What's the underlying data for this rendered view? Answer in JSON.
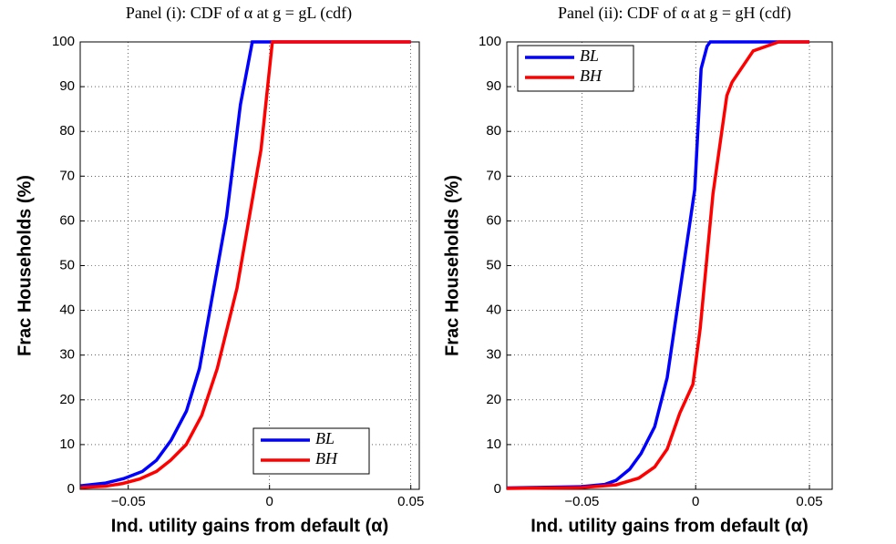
{
  "chart_data": [
    {
      "type": "line",
      "title": "Panel (i): CDF of α at g = gL (cdf)",
      "x_label": "Ind. utility gains from default (α)",
      "y_label": "Frac Households (%)",
      "xlim": [
        -0.067,
        0.053
      ],
      "ylim": [
        0,
        100
      ],
      "xticks": [
        {
          "value": -0.05,
          "label": "−0.05"
        },
        0,
        0.05
      ],
      "yticks": [
        0,
        10,
        20,
        30,
        40,
        50,
        60,
        70,
        80,
        90,
        100
      ],
      "grid": true,
      "legend": "lower right",
      "series": [
        {
          "name": "BL",
          "color": "#0000ff",
          "x": [
            -0.0668,
            -0.058,
            -0.0516,
            -0.045,
            -0.04,
            -0.0348,
            -0.0294,
            -0.0248,
            -0.02,
            -0.0152,
            -0.0103,
            -0.0061,
            0.05
          ],
          "values": [
            0.8,
            1.4,
            2.4,
            4,
            6.5,
            11,
            17.5,
            27,
            44,
            61,
            86,
            100,
            100
          ]
        },
        {
          "name": "BH",
          "color": "#ff0000",
          "x": [
            -0.0668,
            -0.058,
            -0.052,
            -0.046,
            -0.04,
            -0.035,
            -0.0295,
            -0.024,
            -0.0185,
            -0.0115,
            -0.003,
            0.001,
            0.05
          ],
          "values": [
            0.4,
            0.7,
            1.3,
            2.3,
            4,
            6.5,
            10,
            16.5,
            27,
            45,
            76,
            100,
            100
          ]
        }
      ]
    },
    {
      "type": "line",
      "title": "Panel (ii): CDF of α at g = gH (cdf)",
      "x_label": "Ind. utility gains from default (α)",
      "y_label": "Frac Households (%)",
      "xlim": [
        -0.083,
        0.06
      ],
      "ylim": [
        0,
        100
      ],
      "xticks": [
        {
          "value": -0.05,
          "label": "−0.05"
        },
        0,
        0.05
      ],
      "yticks": [
        0,
        10,
        20,
        30,
        40,
        50,
        60,
        70,
        80,
        90,
        100
      ],
      "grid": true,
      "legend": "upper left",
      "series": [
        {
          "name": "BL",
          "color": "#0000ff",
          "x": [
            -0.083,
            -0.05,
            -0.04,
            -0.035,
            -0.029,
            -0.024,
            -0.018,
            -0.0125,
            -0.0004,
            0.0024,
            0.005,
            0.0064,
            0.05
          ],
          "values": [
            0.3,
            0.6,
            1.1,
            2,
            4.5,
            8,
            14,
            25,
            67,
            94,
            99,
            100,
            100
          ]
        },
        {
          "name": "BH",
          "color": "#ff0000",
          "x": [
            -0.083,
            -0.05,
            -0.035,
            -0.025,
            -0.018,
            -0.0125,
            -0.007,
            -0.0012,
            0.002,
            0.0076,
            0.0137,
            0.016,
            0.0253,
            0.0365,
            0.05
          ],
          "values": [
            0.2,
            0.4,
            1,
            2.5,
            5,
            9,
            17,
            23.5,
            36,
            66,
            88,
            91,
            98,
            100,
            100
          ]
        }
      ]
    }
  ]
}
